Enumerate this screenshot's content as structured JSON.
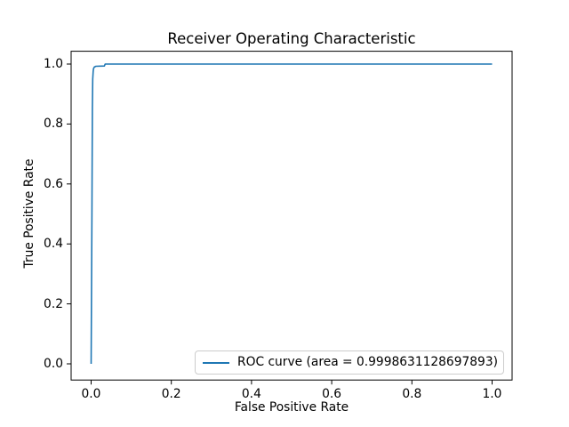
{
  "figure": {
    "title": "Receiver Operating Characteristic",
    "background_color": "#ffffff",
    "spine_color": "#000000"
  },
  "legend": {
    "label": "ROC curve (area = 0.9998631128697893)",
    "position": "lower right",
    "border_color": "#cccccc"
  },
  "chart_data": {
    "type": "line",
    "title": "Receiver Operating Characteristic",
    "xlabel": "False Positive Rate",
    "ylabel": "True Positive Rate",
    "xlim": [
      -0.05,
      1.05
    ],
    "ylim": [
      -0.05,
      1.05
    ],
    "xticks": [
      0.0,
      0.2,
      0.4,
      0.6,
      0.8,
      1.0
    ],
    "yticks": [
      0.0,
      0.2,
      0.4,
      0.6,
      0.8,
      1.0
    ],
    "xtick_labels": [
      "0.0",
      "0.2",
      "0.4",
      "0.6",
      "0.8",
      "1.0"
    ],
    "ytick_labels": [
      "0.0",
      "0.2",
      "0.4",
      "0.6",
      "0.8",
      "1.0"
    ],
    "grid": false,
    "legend_position": "lower right",
    "series": [
      {
        "name": "ROC curve (area = 0.9998631128697893)",
        "color": "#1f77b4",
        "auc": 0.9998631128697893,
        "points": [
          [
            0.0,
            0.0
          ],
          [
            0.002,
            0.5
          ],
          [
            0.003,
            0.85
          ],
          [
            0.004,
            0.95
          ],
          [
            0.005,
            0.975
          ],
          [
            0.006,
            0.985
          ],
          [
            0.008,
            0.99
          ],
          [
            0.012,
            0.9925
          ],
          [
            0.033,
            0.9935
          ],
          [
            0.035,
            1.0
          ],
          [
            1.0,
            1.0
          ]
        ]
      }
    ]
  }
}
